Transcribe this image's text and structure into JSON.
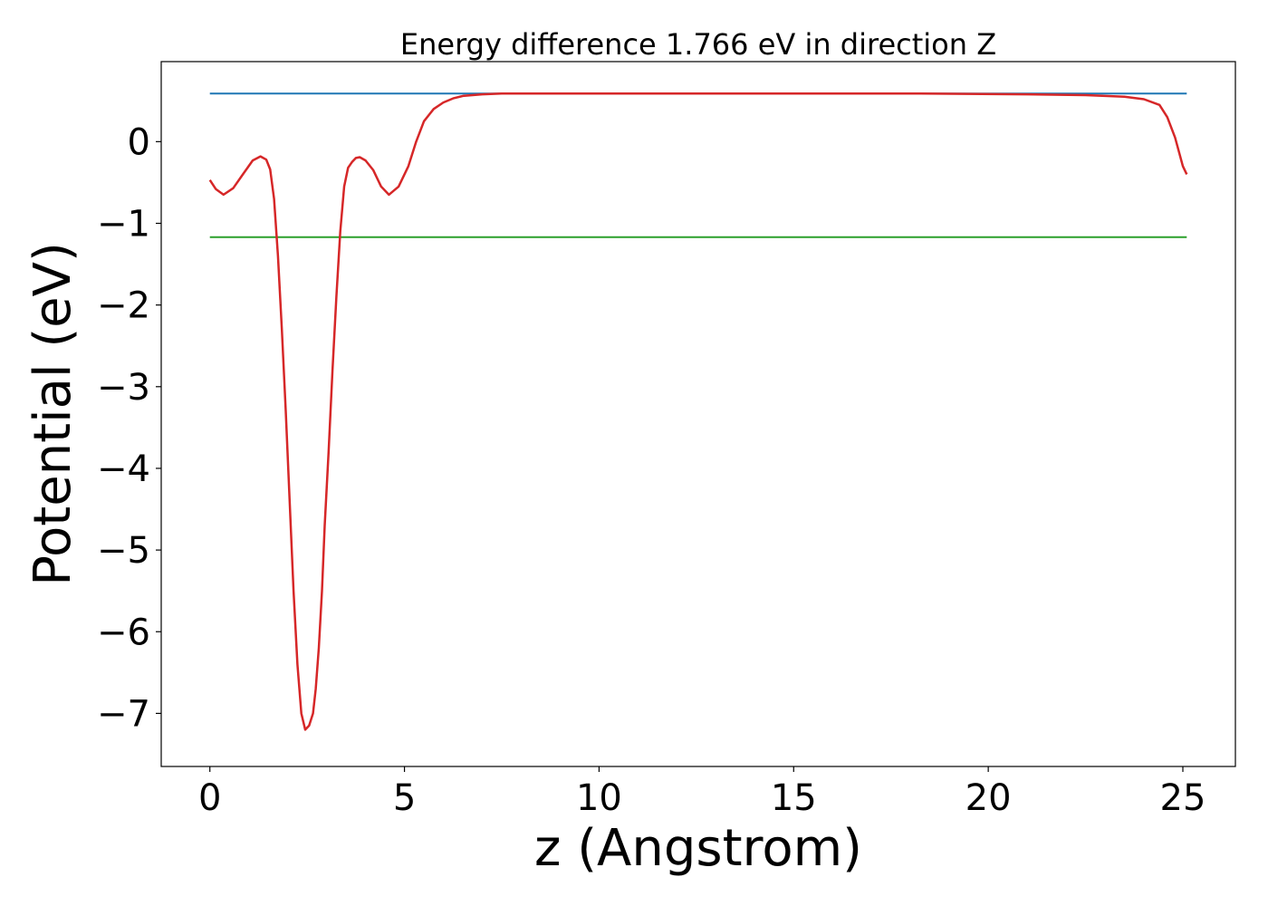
{
  "chart_data": {
    "type": "line",
    "title": "Energy difference 1.766 eV in direction Z",
    "xlabel": "z (Angstrom)",
    "ylabel": "Potential (eV)",
    "xlim": [
      -1.25,
      26.35
    ],
    "ylim": [
      -7.65,
      0.98
    ],
    "x_ticks": [
      {
        "value": 0,
        "label": "0"
      },
      {
        "value": 5,
        "label": "5"
      },
      {
        "value": 10,
        "label": "10"
      },
      {
        "value": 15,
        "label": "15"
      },
      {
        "value": 20,
        "label": "20"
      },
      {
        "value": 25,
        "label": "25"
      }
    ],
    "y_ticks": [
      {
        "value": 0,
        "label": "0"
      },
      {
        "value": -1,
        "label": "−1"
      },
      {
        "value": -2,
        "label": "−2"
      },
      {
        "value": -3,
        "label": "−3"
      },
      {
        "value": -4,
        "label": "−4"
      },
      {
        "value": -5,
        "label": "−5"
      },
      {
        "value": -6,
        "label": "−6"
      },
      {
        "value": -7,
        "label": "−7"
      }
    ],
    "grid": false,
    "series": [
      {
        "color": "#1f77b4",
        "x": [
          0,
          25.1
        ],
        "y": [
          0.59,
          0.59
        ]
      },
      {
        "color": "#2ca02c",
        "x": [
          0,
          25.1
        ],
        "y": [
          -1.17,
          -1.17
        ]
      },
      {
        "color": "#d62728",
        "x": [
          0,
          0.15,
          0.35,
          0.6,
          0.85,
          1.1,
          1.3,
          1.45,
          1.55,
          1.65,
          1.75,
          1.85,
          1.95,
          2.05,
          2.15,
          2.25,
          2.35,
          2.45,
          2.55,
          2.65,
          2.72,
          2.8,
          2.88,
          2.95,
          3.05,
          3.15,
          3.25,
          3.35,
          3.45,
          3.55,
          3.65,
          3.75,
          3.85,
          4.0,
          4.2,
          4.4,
          4.6,
          4.85,
          5.1,
          5.3,
          5.5,
          5.75,
          6.0,
          6.25,
          6.5,
          7.0,
          7.5,
          8.0,
          9.0,
          10.0,
          12.0,
          15.0,
          18.0,
          21.0,
          22.5,
          23.5,
          24.0,
          24.4,
          24.6,
          24.8,
          25.0,
          25.1
        ],
        "y": [
          -0.47,
          -0.58,
          -0.65,
          -0.57,
          -0.4,
          -0.23,
          -0.18,
          -0.22,
          -0.34,
          -0.7,
          -1.4,
          -2.3,
          -3.3,
          -4.4,
          -5.5,
          -6.4,
          -7.0,
          -7.2,
          -7.15,
          -7.0,
          -6.7,
          -6.2,
          -5.5,
          -4.7,
          -3.8,
          -2.8,
          -1.9,
          -1.1,
          -0.55,
          -0.32,
          -0.25,
          -0.2,
          -0.19,
          -0.23,
          -0.35,
          -0.55,
          -0.65,
          -0.55,
          -0.3,
          0.0,
          0.25,
          0.4,
          0.48,
          0.53,
          0.56,
          0.58,
          0.59,
          0.59,
          0.59,
          0.59,
          0.59,
          0.59,
          0.59,
          0.58,
          0.57,
          0.55,
          0.52,
          0.45,
          0.3,
          0.05,
          -0.3,
          -0.4
        ]
      }
    ]
  }
}
